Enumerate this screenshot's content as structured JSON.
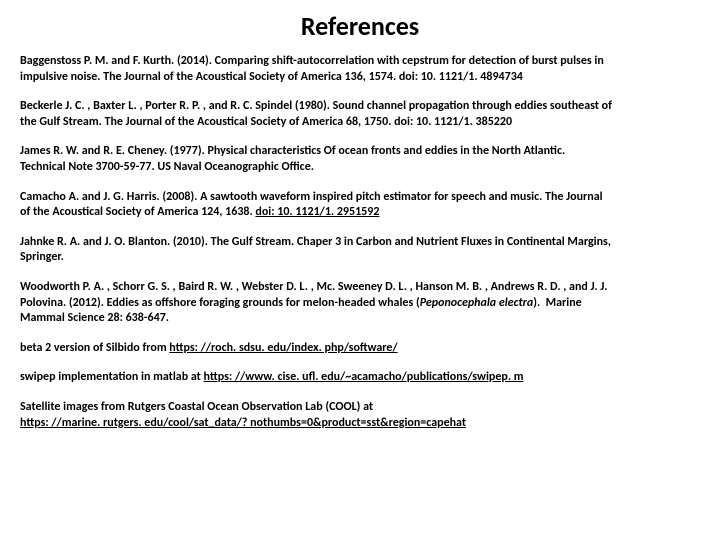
{
  "title": "References",
  "refs": {
    "r1a": "Baggenstoss P. M. and F. Kurth. (2014). Comparing shift-autocorrelation with cepstrum for detection of burst pulses in",
    "r1b": "impulsive noise. The Journal of the Acoustical Society of America 136, 1574. doi: 10. 1121/1. 4894734",
    "r2a": "Beckerle J. C. , Baxter L. , Porter R. P. , and R. C. Spindel (1980). Sound channel propagation through eddies southeast of",
    "r2b": "the Gulf Stream. The Journal of the Acoustical Society of America 68, 1750. doi: 10. 1121/1. 385220",
    "r3a": "James R. W. and R. E. Cheney. (1977). Physical characteristics Of ocean fronts and eddies in the North Atlantic.",
    "r3b": "Technical Note 3700-59-77. US Naval Oceanographic Office.",
    "r4a": "Camacho A. and J. G. Harris. (2008). A sawtooth waveform inspired pitch estimator for speech and music. The Journal",
    "r4b": "of the Acoustical Society of America 124, 1638. ",
    "r4link": "doi: 10. 1121/1. 2951592",
    "r5a": "Jahnke R. A. and J. O. Blanton. (2010). The Gulf Stream. Chaper 3 in Carbon and Nutrient Fluxes in Continental Margins,",
    "r5b": "Springer.",
    "r6a": "Woodworth P. A. , Schorr G. S. , Baird R. W. , Webster D. L. , Mc. Sweeney D. L. , Hanson M. B. , Andrews R. D. , and J. J.",
    "r6b": "Polovina. (2012). Eddies as offshore foraging grounds for melon-headed whales (",
    "r6i": "Peponocephala electra",
    "r6c": ").  Marine",
    "r6d": "Mammal Science 28: 638-647.",
    "r7a": "beta 2 version of Silbido from ",
    "r7link": "https: //roch. sdsu. edu/index. php/software/",
    "r8a": "swipep implementation in matlab at ",
    "r8link": "https: //www. cise. ufl. edu/~acamacho/publications/swipep. m",
    "r9a": "Satellite images from Rutgers Coastal Ocean Observation Lab (COOL) at",
    "r9link": "https: //marine. rutgers. edu/cool/sat_data/? nothumbs=0&product=sst&region=capehat"
  }
}
